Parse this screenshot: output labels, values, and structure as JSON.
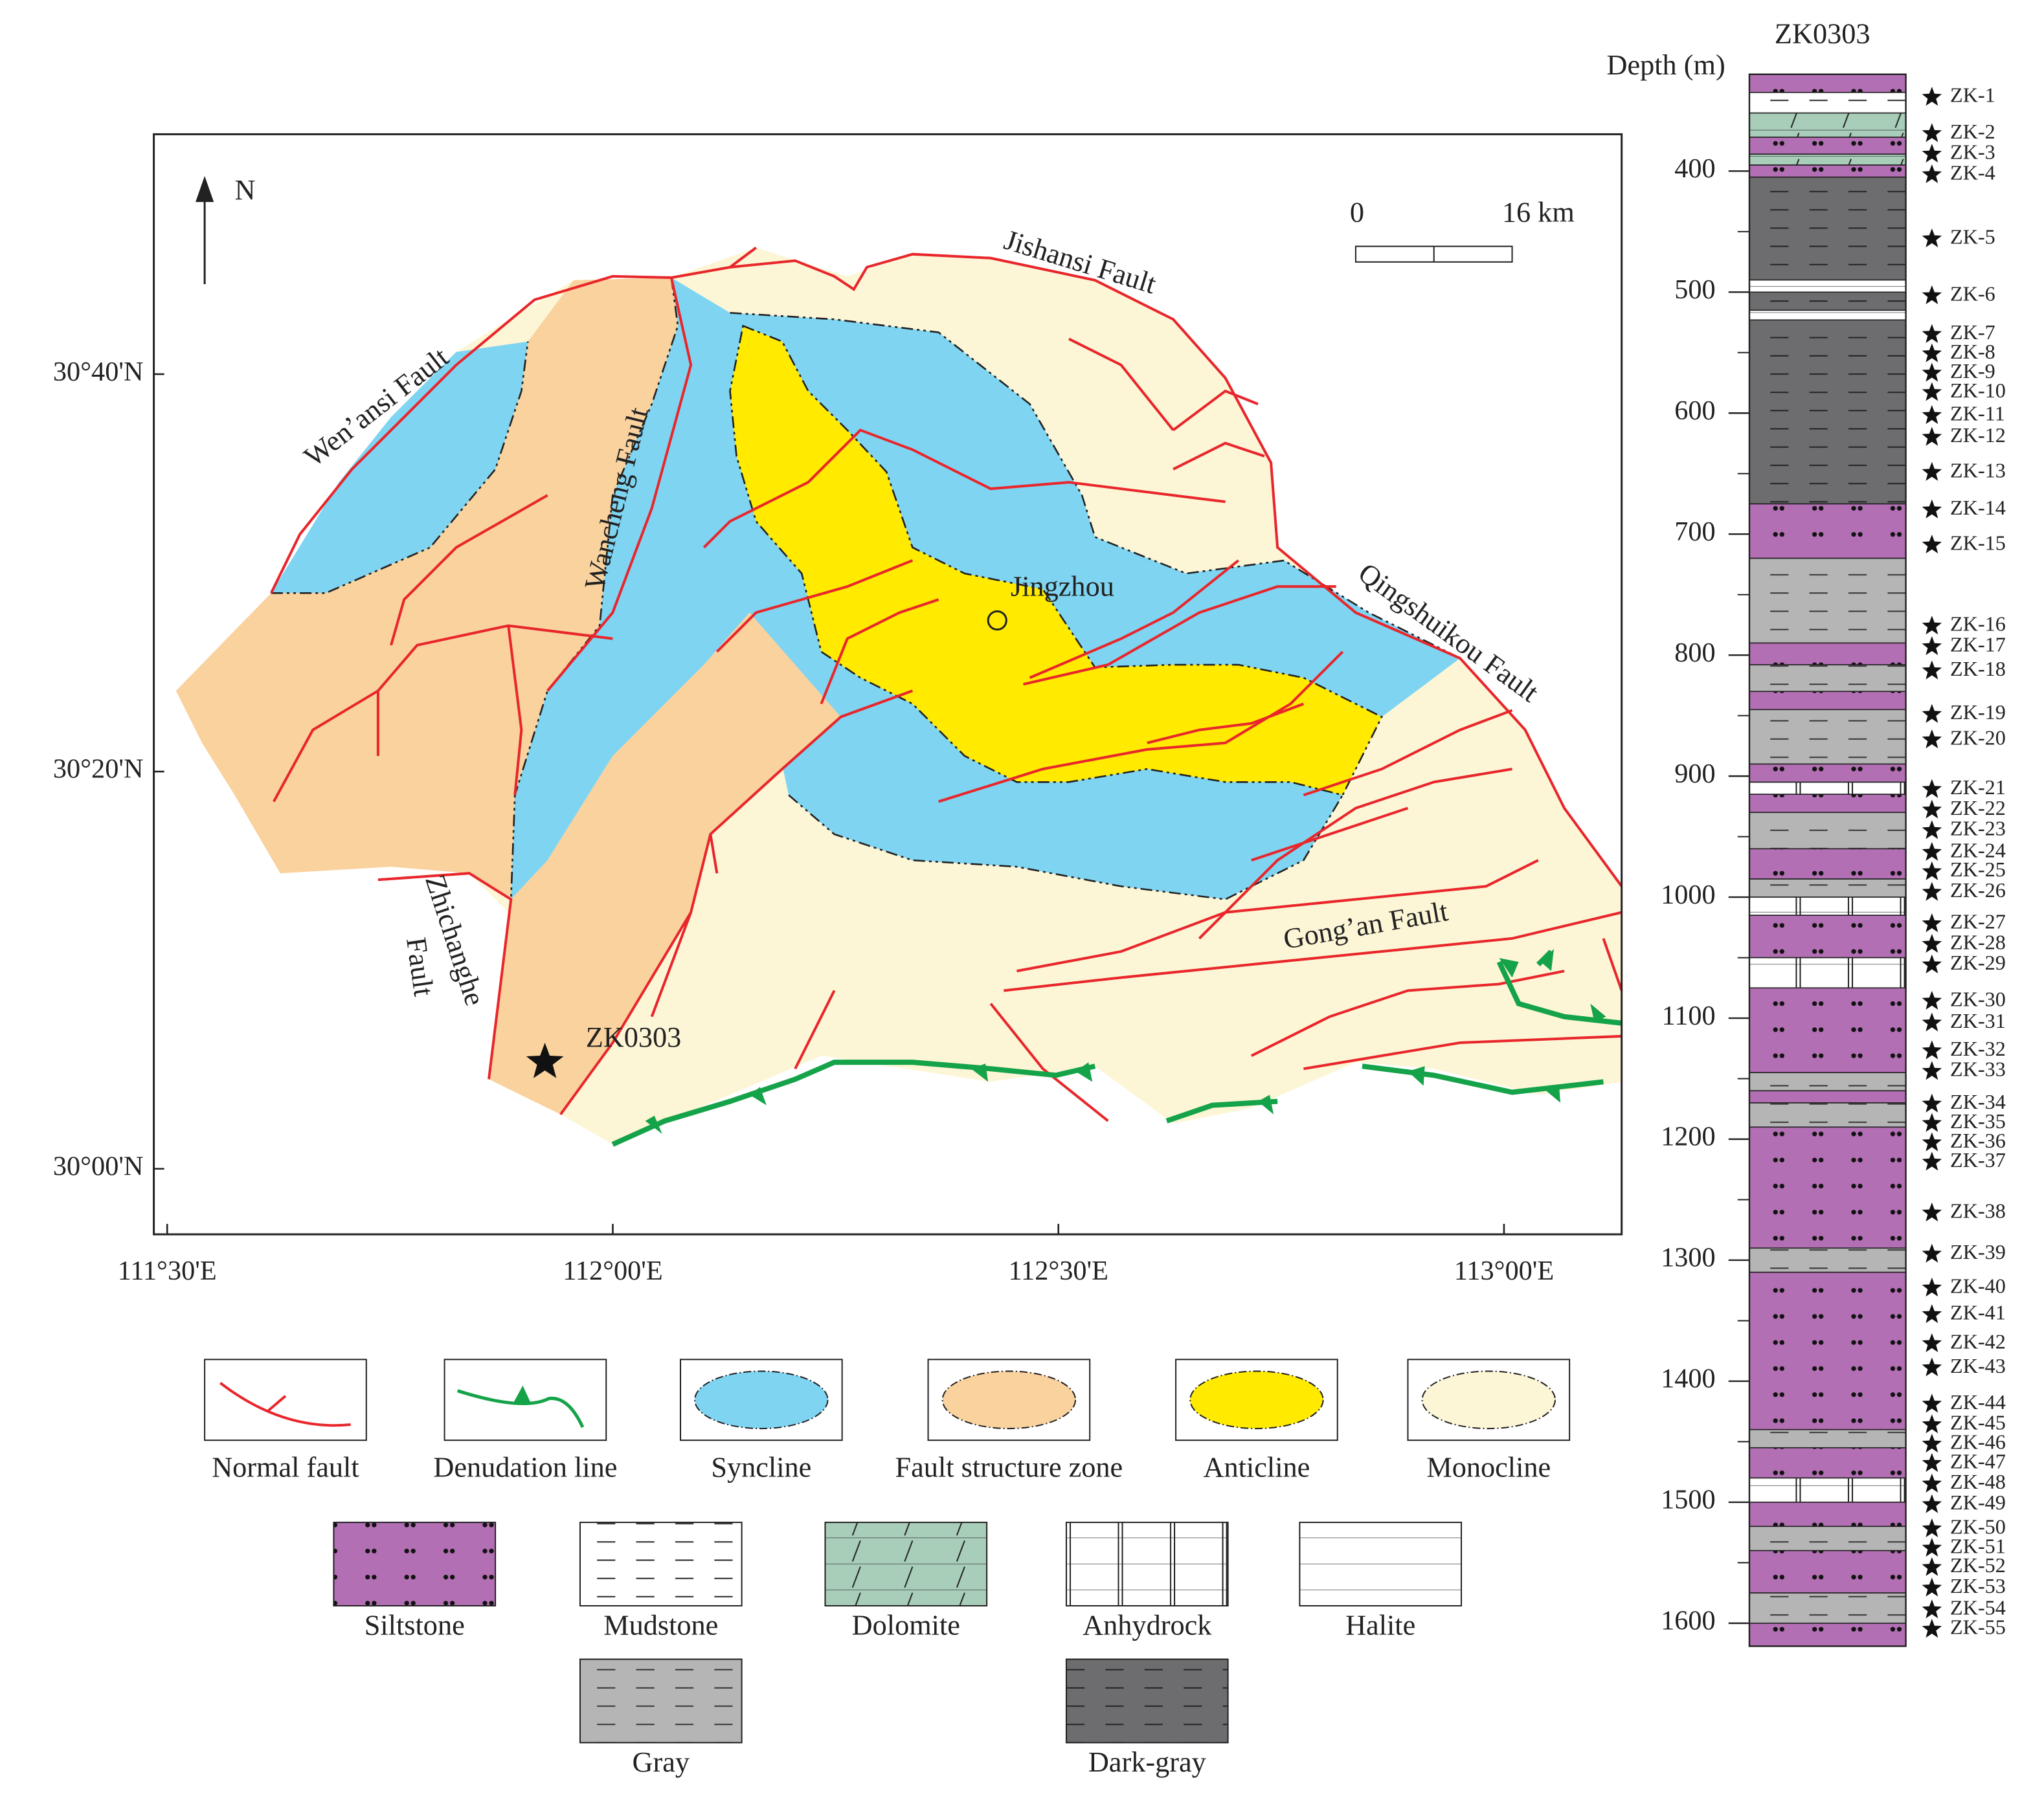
{
  "map": {
    "xlim": [
      111.485,
      113.132
    ],
    "ylim": [
      29.945,
      30.868
    ],
    "xticks": [
      {
        "value": 111.5,
        "label": "111°30'E"
      },
      {
        "value": 112,
        "label": "112°00'E"
      },
      {
        "value": 112.5,
        "label": "112°30'E"
      },
      {
        "value": 113,
        "label": "113°00'E"
      }
    ],
    "yticks": [
      {
        "value": 30.6667,
        "label": "30°40'N"
      },
      {
        "value": 30.3333,
        "label": "30°20'N"
      },
      {
        "value": 30,
        "label": "30°00'N"
      }
    ],
    "north": "N",
    "scale_bar": [
      "0",
      "16 km"
    ],
    "labels": {
      "jishansi": "Jishansi Fault",
      "wenansi": "Wen’ansi Fault",
      "wancheng": "Wancheng Fault",
      "jingzhou": "Jingzhou",
      "qingshuikou": "Qingshuikou Fault",
      "zhichanghe": [
        "Zhichanghe",
        "Fault"
      ],
      "gongan": "Gong’an Fault",
      "well": "ZK0303"
    }
  },
  "legend": [
    {
      "label": "Normal fault",
      "symbol": "normal-fault"
    },
    {
      "label": "Denudation line",
      "symbol": "denudation"
    },
    {
      "label": "Syncline",
      "symbol": "area",
      "color": "#7fd4f2"
    },
    {
      "label": "Fault structure zone",
      "symbol": "area",
      "color": "#f9d29e"
    },
    {
      "label": "Anticline",
      "symbol": "area",
      "color": "#ffea00"
    },
    {
      "label": "Monocline",
      "symbol": "area",
      "color": "#fdf6d6"
    },
    {
      "label": "Siltstone",
      "symbol": "siltstone"
    },
    {
      "label": "Mudstone",
      "symbol": "mudstone"
    },
    {
      "label": "Dolomite",
      "symbol": "dolomite"
    },
    {
      "label": "Anhydrock",
      "symbol": "anhydrock"
    },
    {
      "label": "Halite",
      "symbol": "halite"
    },
    {
      "label": "Gray",
      "symbol": "gray"
    },
    {
      "label": "Dark-gray",
      "symbol": "dark-gray"
    }
  ],
  "column": {
    "title": "ZK0303",
    "axis_label": "Depth (m)",
    "ylim": [
      320,
      1619
    ],
    "yticks": [
      400,
      500,
      600,
      700,
      800,
      900,
      1000,
      1100,
      1200,
      1300,
      1400,
      1500,
      1600
    ],
    "layers": [
      {
        "top": 320,
        "bottom": 335,
        "pattern": "siltstone"
      },
      {
        "top": 335,
        "bottom": 352,
        "pattern": "mudstone"
      },
      {
        "top": 352,
        "bottom": 372,
        "pattern": "dolomite"
      },
      {
        "top": 372,
        "bottom": 386,
        "pattern": "siltstone"
      },
      {
        "top": 386,
        "bottom": 395,
        "pattern": "dolomite"
      },
      {
        "top": 395,
        "bottom": 405,
        "pattern": "siltstone"
      },
      {
        "top": 405,
        "bottom": 490,
        "pattern": "dark-gray"
      },
      {
        "top": 490,
        "bottom": 500,
        "pattern": "halite"
      },
      {
        "top": 500,
        "bottom": 515,
        "pattern": "dark-gray"
      },
      {
        "top": 515,
        "bottom": 523,
        "pattern": "halite"
      },
      {
        "top": 523,
        "bottom": 675,
        "pattern": "dark-gray"
      },
      {
        "top": 675,
        "bottom": 720,
        "pattern": "siltstone"
      },
      {
        "top": 720,
        "bottom": 790,
        "pattern": "gray"
      },
      {
        "top": 790,
        "bottom": 808,
        "pattern": "siltstone"
      },
      {
        "top": 808,
        "bottom": 830,
        "pattern": "gray"
      },
      {
        "top": 830,
        "bottom": 845,
        "pattern": "siltstone"
      },
      {
        "top": 845,
        "bottom": 890,
        "pattern": "gray"
      },
      {
        "top": 890,
        "bottom": 905,
        "pattern": "siltstone"
      },
      {
        "top": 905,
        "bottom": 915,
        "pattern": "anhydrock"
      },
      {
        "top": 915,
        "bottom": 930,
        "pattern": "siltstone"
      },
      {
        "top": 930,
        "bottom": 960,
        "pattern": "gray"
      },
      {
        "top": 960,
        "bottom": 985,
        "pattern": "siltstone"
      },
      {
        "top": 985,
        "bottom": 1000,
        "pattern": "gray"
      },
      {
        "top": 1000,
        "bottom": 1015,
        "pattern": "anhydrock"
      },
      {
        "top": 1015,
        "bottom": 1050,
        "pattern": "siltstone"
      },
      {
        "top": 1050,
        "bottom": 1075,
        "pattern": "anhydrock"
      },
      {
        "top": 1075,
        "bottom": 1145,
        "pattern": "siltstone"
      },
      {
        "top": 1145,
        "bottom": 1160,
        "pattern": "gray"
      },
      {
        "top": 1160,
        "bottom": 1170,
        "pattern": "siltstone"
      },
      {
        "top": 1170,
        "bottom": 1190,
        "pattern": "gray"
      },
      {
        "top": 1190,
        "bottom": 1290,
        "pattern": "siltstone"
      },
      {
        "top": 1290,
        "bottom": 1310,
        "pattern": "gray"
      },
      {
        "top": 1310,
        "bottom": 1440,
        "pattern": "siltstone"
      },
      {
        "top": 1440,
        "bottom": 1455,
        "pattern": "gray"
      },
      {
        "top": 1455,
        "bottom": 1480,
        "pattern": "siltstone"
      },
      {
        "top": 1480,
        "bottom": 1500,
        "pattern": "anhydrock"
      },
      {
        "top": 1500,
        "bottom": 1520,
        "pattern": "siltstone"
      },
      {
        "top": 1520,
        "bottom": 1540,
        "pattern": "gray"
      },
      {
        "top": 1540,
        "bottom": 1575,
        "pattern": "siltstone"
      },
      {
        "top": 1575,
        "bottom": 1600,
        "pattern": "gray"
      },
      {
        "top": 1600,
        "bottom": 1619,
        "pattern": "siltstone"
      }
    ],
    "samples": [
      {
        "label": "ZK-1",
        "depth": 339
      },
      {
        "label": "ZK-2",
        "depth": 369
      },
      {
        "label": "ZK-3",
        "depth": 386
      },
      {
        "label": "ZK-4",
        "depth": 403
      },
      {
        "label": "ZK-5",
        "depth": 456
      },
      {
        "label": "ZK-6",
        "depth": 503
      },
      {
        "label": "ZK-7",
        "depth": 535
      },
      {
        "label": "ZK-8",
        "depth": 551
      },
      {
        "label": "ZK-9",
        "depth": 567
      },
      {
        "label": "ZK-10",
        "depth": 583
      },
      {
        "label": "ZK-11",
        "depth": 602
      },
      {
        "label": "ZK-12",
        "depth": 620
      },
      {
        "label": "ZK-13",
        "depth": 649
      },
      {
        "label": "ZK-14",
        "depth": 680
      },
      {
        "label": "ZK-15",
        "depth": 709
      },
      {
        "label": "ZK-16",
        "depth": 776
      },
      {
        "label": "ZK-17",
        "depth": 793
      },
      {
        "label": "ZK-18",
        "depth": 813
      },
      {
        "label": "ZK-19",
        "depth": 849
      },
      {
        "label": "ZK-20",
        "depth": 870
      },
      {
        "label": "ZK-21",
        "depth": 911
      },
      {
        "label": "ZK-22",
        "depth": 928
      },
      {
        "label": "ZK-23",
        "depth": 945
      },
      {
        "label": "ZK-24",
        "depth": 963
      },
      {
        "label": "ZK-25",
        "depth": 979
      },
      {
        "label": "ZK-26",
        "depth": 996
      },
      {
        "label": "ZK-27",
        "depth": 1022
      },
      {
        "label": "ZK-28",
        "depth": 1039
      },
      {
        "label": "ZK-29",
        "depth": 1056
      },
      {
        "label": "ZK-30",
        "depth": 1086
      },
      {
        "label": "ZK-31",
        "depth": 1104
      },
      {
        "label": "ZK-32",
        "depth": 1127
      },
      {
        "label": "ZK-33",
        "depth": 1144
      },
      {
        "label": "ZK-34",
        "depth": 1171
      },
      {
        "label": "ZK-35",
        "depth": 1187
      },
      {
        "label": "ZK-36",
        "depth": 1203
      },
      {
        "label": "ZK-37",
        "depth": 1219
      },
      {
        "label": "ZK-38",
        "depth": 1261
      },
      {
        "label": "ZK-39",
        "depth": 1295
      },
      {
        "label": "ZK-40",
        "depth": 1323
      },
      {
        "label": "ZK-41",
        "depth": 1345
      },
      {
        "label": "ZK-42",
        "depth": 1369
      },
      {
        "label": "ZK-43",
        "depth": 1389
      },
      {
        "label": "ZK-44",
        "depth": 1419
      },
      {
        "label": "ZK-45",
        "depth": 1436
      },
      {
        "label": "ZK-46",
        "depth": 1452
      },
      {
        "label": "ZK-47",
        "depth": 1468
      },
      {
        "label": "ZK-48",
        "depth": 1485
      },
      {
        "label": "ZK-49",
        "depth": 1502
      },
      {
        "label": "ZK-50",
        "depth": 1522
      },
      {
        "label": "ZK-51",
        "depth": 1538
      },
      {
        "label": "ZK-52",
        "depth": 1554
      },
      {
        "label": "ZK-53",
        "depth": 1571
      },
      {
        "label": "ZK-54",
        "depth": 1589
      },
      {
        "label": "ZK-55",
        "depth": 1605
      }
    ]
  }
}
